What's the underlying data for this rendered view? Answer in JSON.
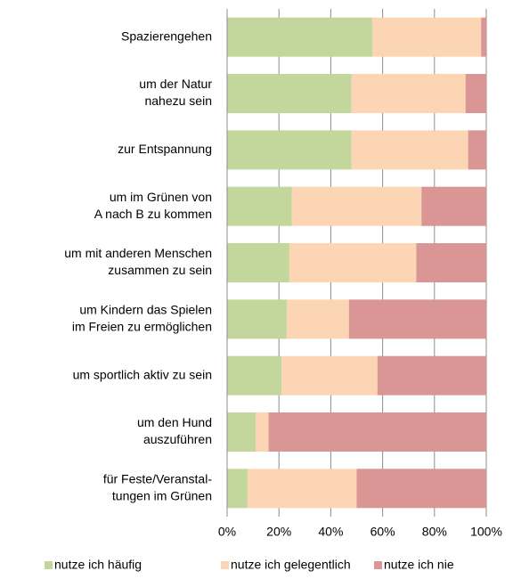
{
  "chart_data": {
    "type": "stacked_barh",
    "categories": [
      [
        "Spazierengehen"
      ],
      [
        "um der Natur",
        "nahezu sein"
      ],
      [
        "zur Entspannung"
      ],
      [
        "um im Grünen von",
        "A nach B zu kommen"
      ],
      [
        "um mit anderen Menschen",
        "zusammen zu sein"
      ],
      [
        "um Kindern das Spielen",
        "im Freien zu ermöglichen"
      ],
      [
        "um sportlich aktiv zu sein"
      ],
      [
        "um den Hund",
        "auszuführen"
      ],
      [
        "für Feste/Veranstal-",
        "tungen  im Grünen"
      ]
    ],
    "series": [
      {
        "name": "nutze ich häufig",
        "color": "#c3d69b",
        "values": [
          56,
          48,
          48,
          25,
          24,
          23,
          21,
          11,
          8
        ]
      },
      {
        "name": "nutze ich gelegentlich",
        "color": "#fcd5b5",
        "values": [
          42,
          44,
          45,
          50,
          49,
          24,
          37,
          5,
          42
        ]
      },
      {
        "name": "nutze ich nie",
        "color": "#d99694",
        "values": [
          2,
          8,
          7,
          25,
          27,
          53,
          42,
          84,
          50
        ]
      }
    ],
    "xlim": [
      0,
      100
    ],
    "xticks": [
      {
        "value": 0,
        "label": "0%"
      },
      {
        "value": 20,
        "label": "20%"
      },
      {
        "value": 40,
        "label": "40%"
      },
      {
        "value": 60,
        "label": "60%"
      },
      {
        "value": 80,
        "label": "80%"
      },
      {
        "value": 100,
        "label": "100%"
      }
    ],
    "grid": true,
    "legend": "bottom"
  }
}
